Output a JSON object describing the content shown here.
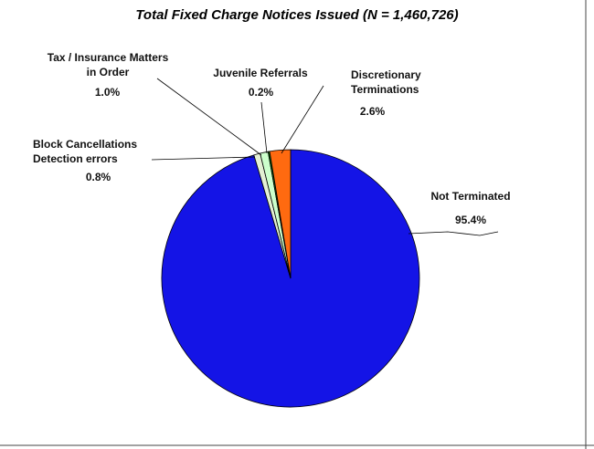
{
  "chart_data": {
    "type": "pie",
    "title": "Total Fixed Charge Notices Issued (N = 1,460,726)",
    "categories": [
      "Not Terminated",
      "Block Cancellations Detection errors",
      "Tax / Insurance Matters in Order",
      "Juvenile Referrals",
      "Discretionary Terminations"
    ],
    "values": [
      95.4,
      0.8,
      1.0,
      0.2,
      2.6
    ],
    "value_labels": [
      "95.4%",
      "0.8%",
      "1.0%",
      "0.2%",
      "2.6%"
    ],
    "colors": [
      "#1414e6",
      "#e4f0d4",
      "#ccffcc",
      "#0a6a0a",
      "#ff6a10"
    ]
  }
}
